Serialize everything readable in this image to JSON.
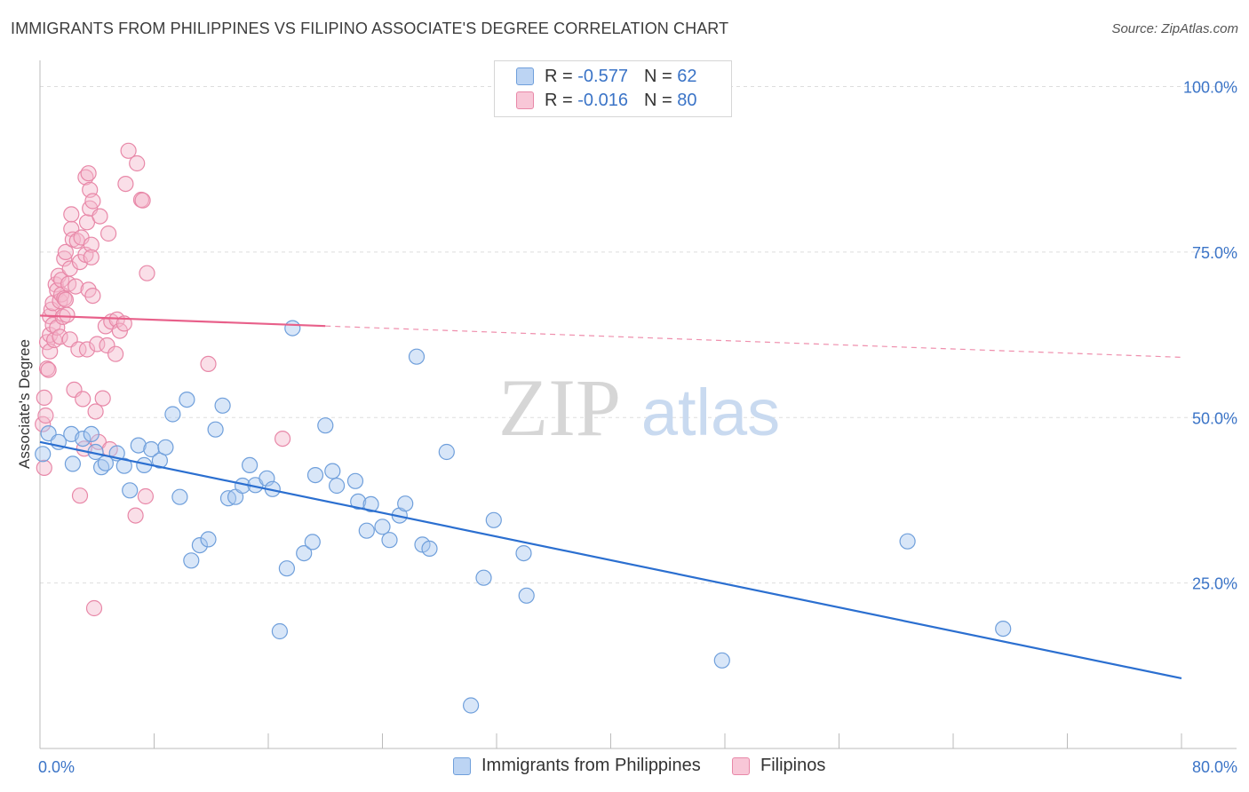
{
  "header": {
    "title": "IMMIGRANTS FROM PHILIPPINES VS FILIPINO ASSOCIATE'S DEGREE CORRELATION CHART",
    "source": "Source: ZipAtlas.com"
  },
  "watermark": {
    "zip": "ZIP",
    "atlas": "atlas"
  },
  "legend": {
    "r_label": "R =",
    "n_label": "N =",
    "series1": {
      "r": "-0.577",
      "n": "62"
    },
    "series2": {
      "r": "-0.016",
      "n": "80"
    }
  },
  "colors": {
    "blue_fill": "#a9c8ef",
    "blue_stroke": "#6f9fdb",
    "blue_line": "#2b6fd0",
    "pink_fill": "#f5b8cc",
    "pink_stroke": "#e888a8",
    "pink_line": "#e8608a",
    "tick_label": "#3b74c7",
    "grid": "#dddddd"
  },
  "chart_data": {
    "type": "scatter",
    "title": "IMMIGRANTS FROM PHILIPPINES VS FILIPINO ASSOCIATE'S DEGREE CORRELATION CHART",
    "xlabel": "",
    "ylabel": "Associate's Degree",
    "xlim": [
      0,
      80
    ],
    "ylim": [
      0,
      105
    ],
    "x_tick_labels": [
      "0.0%",
      "80.0%"
    ],
    "y_ticks": [
      25,
      50,
      75,
      100
    ],
    "y_tick_labels": [
      "25.0%",
      "50.0%",
      "75.0%",
      "100.0%"
    ],
    "grid": true,
    "legend_position": "top-center",
    "series": [
      {
        "name": "Immigrants from Philippines",
        "color": "#a9c8ef",
        "r": -0.577,
        "n": 62,
        "trend": {
          "x": [
            0,
            80
          ],
          "y": [
            46.3,
            10.6
          ]
        },
        "points": [
          [
            0.2,
            44.5
          ],
          [
            0.6,
            47.6
          ],
          [
            1.3,
            46.3
          ],
          [
            2.2,
            47.5
          ],
          [
            2.3,
            43.0
          ],
          [
            3.0,
            46.8
          ],
          [
            3.6,
            47.5
          ],
          [
            3.9,
            44.8
          ],
          [
            4.3,
            42.5
          ],
          [
            4.6,
            43.1
          ],
          [
            5.4,
            44.6
          ],
          [
            5.9,
            42.7
          ],
          [
            6.3,
            39.0
          ],
          [
            6.9,
            45.8
          ],
          [
            7.3,
            42.8
          ],
          [
            7.8,
            45.2
          ],
          [
            8.4,
            43.5
          ],
          [
            8.8,
            45.5
          ],
          [
            9.3,
            50.5
          ],
          [
            9.8,
            38.0
          ],
          [
            10.3,
            52.7
          ],
          [
            10.6,
            28.4
          ],
          [
            11.2,
            30.7
          ],
          [
            11.8,
            31.6
          ],
          [
            12.3,
            48.2
          ],
          [
            12.8,
            51.8
          ],
          [
            13.2,
            37.8
          ],
          [
            13.7,
            38.0
          ],
          [
            14.2,
            39.7
          ],
          [
            14.7,
            42.8
          ],
          [
            15.1,
            39.8
          ],
          [
            15.9,
            40.8
          ],
          [
            16.3,
            39.2
          ],
          [
            16.8,
            17.7
          ],
          [
            17.3,
            27.2
          ],
          [
            17.7,
            63.5
          ],
          [
            18.5,
            29.5
          ],
          [
            19.1,
            31.2
          ],
          [
            19.3,
            41.3
          ],
          [
            20.0,
            48.8
          ],
          [
            20.5,
            41.9
          ],
          [
            20.8,
            39.7
          ],
          [
            22.1,
            40.4
          ],
          [
            22.3,
            37.3
          ],
          [
            22.9,
            32.9
          ],
          [
            23.2,
            36.9
          ],
          [
            24.0,
            33.5
          ],
          [
            24.5,
            31.5
          ],
          [
            25.2,
            35.2
          ],
          [
            25.6,
            37.0
          ],
          [
            26.4,
            59.2
          ],
          [
            26.8,
            30.8
          ],
          [
            27.3,
            30.2
          ],
          [
            28.5,
            44.8
          ],
          [
            30.2,
            6.5
          ],
          [
            31.1,
            25.8
          ],
          [
            31.8,
            34.5
          ],
          [
            33.9,
            29.5
          ],
          [
            34.1,
            23.1
          ],
          [
            47.8,
            13.3
          ],
          [
            60.8,
            31.3
          ],
          [
            67.5,
            18.1
          ]
        ]
      },
      {
        "name": "Filipinos",
        "color": "#f5b8cc",
        "r": -0.016,
        "n": 80,
        "trend": {
          "x": [
            0,
            80
          ],
          "y": [
            65.4,
            59.1
          ]
        },
        "points": [
          [
            0.2,
            49.0
          ],
          [
            0.3,
            53.0
          ],
          [
            0.3,
            42.4
          ],
          [
            0.4,
            50.3
          ],
          [
            0.5,
            57.4
          ],
          [
            0.5,
            61.4
          ],
          [
            0.6,
            57.2
          ],
          [
            0.7,
            62.5
          ],
          [
            0.7,
            60.0
          ],
          [
            0.7,
            65.3
          ],
          [
            0.8,
            66.3
          ],
          [
            0.9,
            67.3
          ],
          [
            0.9,
            64.0
          ],
          [
            1.0,
            61.7
          ],
          [
            1.1,
            70.1
          ],
          [
            1.2,
            69.2
          ],
          [
            1.2,
            63.6
          ],
          [
            1.3,
            71.4
          ],
          [
            1.4,
            67.6
          ],
          [
            1.4,
            62.2
          ],
          [
            1.5,
            68.6
          ],
          [
            1.5,
            70.8
          ],
          [
            1.6,
            65.2
          ],
          [
            1.7,
            74.0
          ],
          [
            1.7,
            68.0
          ],
          [
            1.8,
            75.0
          ],
          [
            1.8,
            67.8
          ],
          [
            1.9,
            65.5
          ],
          [
            2.0,
            70.2
          ],
          [
            2.1,
            72.5
          ],
          [
            2.1,
            61.8
          ],
          [
            2.2,
            78.5
          ],
          [
            2.2,
            80.7
          ],
          [
            2.3,
            76.9
          ],
          [
            2.4,
            54.2
          ],
          [
            2.5,
            69.8
          ],
          [
            2.6,
            76.7
          ],
          [
            2.7,
            60.3
          ],
          [
            2.8,
            73.5
          ],
          [
            2.8,
            38.2
          ],
          [
            2.9,
            77.2
          ],
          [
            3.0,
            52.8
          ],
          [
            3.1,
            45.3
          ],
          [
            3.2,
            74.6
          ],
          [
            3.2,
            86.3
          ],
          [
            3.3,
            60.3
          ],
          [
            3.3,
            79.5
          ],
          [
            3.4,
            69.3
          ],
          [
            3.4,
            86.9
          ],
          [
            3.5,
            84.4
          ],
          [
            3.5,
            81.6
          ],
          [
            3.6,
            76.1
          ],
          [
            3.6,
            74.2
          ],
          [
            3.7,
            82.7
          ],
          [
            3.7,
            68.4
          ],
          [
            3.8,
            21.2
          ],
          [
            3.9,
            50.9
          ],
          [
            4.0,
            61.1
          ],
          [
            4.1,
            46.3
          ],
          [
            4.2,
            80.4
          ],
          [
            4.4,
            52.9
          ],
          [
            4.6,
            63.8
          ],
          [
            4.7,
            60.9
          ],
          [
            4.8,
            77.8
          ],
          [
            4.9,
            45.2
          ],
          [
            5.0,
            64.5
          ],
          [
            5.3,
            59.6
          ],
          [
            5.4,
            64.8
          ],
          [
            5.6,
            63.1
          ],
          [
            5.9,
            64.2
          ],
          [
            6.0,
            85.3
          ],
          [
            6.2,
            90.3
          ],
          [
            6.7,
            35.2
          ],
          [
            6.8,
            88.4
          ],
          [
            7.1,
            82.9
          ],
          [
            7.2,
            82.8
          ],
          [
            7.4,
            38.1
          ],
          [
            7.5,
            71.8
          ],
          [
            11.8,
            58.1
          ],
          [
            17.0,
            46.8
          ]
        ]
      }
    ]
  }
}
